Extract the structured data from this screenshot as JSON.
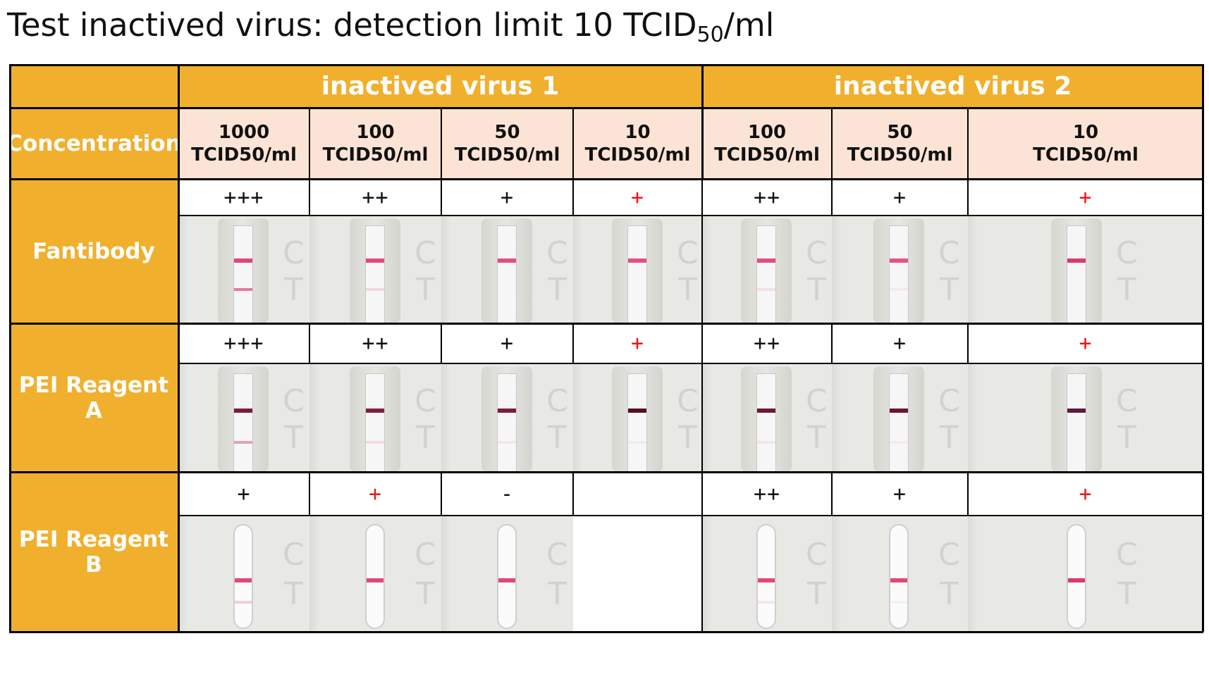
{
  "title": {
    "main": "Test inactived virus: detection limit 10 TCID",
    "subscript": "50",
    "suffix": "/ml"
  },
  "table": {
    "groups": [
      "inactived virus 1",
      "inactived virus 2"
    ],
    "concentration_label": "Concentration",
    "columns": [
      {
        "value": "1000",
        "unit": "TCID50/ml"
      },
      {
        "value": "100",
        "unit": "TCID50/ml"
      },
      {
        "value": "50",
        "unit": "TCID50/ml"
      },
      {
        "value": "10",
        "unit": "TCID50/ml"
      },
      {
        "value": "100",
        "unit": "TCID50/ml"
      },
      {
        "value": "50",
        "unit": "TCID50/ml"
      },
      {
        "value": "10",
        "unit": "TCID50/ml"
      }
    ],
    "rows": [
      {
        "label": "Fantibody",
        "results": [
          "+++",
          "++",
          "+",
          "+",
          "++",
          "+",
          "+"
        ],
        "result_colors": [
          "black",
          "black",
          "black",
          "red",
          "black",
          "black",
          "red"
        ]
      },
      {
        "label": "PEI Reagent A",
        "results": [
          "+++",
          "++",
          "+",
          "+",
          "++",
          "+",
          "+"
        ],
        "result_colors": [
          "black",
          "black",
          "black",
          "red",
          "black",
          "black",
          "red"
        ]
      },
      {
        "label": "PEI Reagent B",
        "results": [
          "+",
          "+",
          "-",
          "",
          "++",
          "+",
          "+"
        ],
        "result_colors": [
          "black",
          "red",
          "black",
          "black",
          "black",
          "black",
          "red"
        ]
      }
    ],
    "strip_letters": [
      "C",
      "T"
    ]
  },
  "strips": [
    [
      {
        "c_color": "#e0467a",
        "t_color": "#e37aa0",
        "t": 0.8
      },
      {
        "c_color": "#e04a7e",
        "t_color": "#eec3d3",
        "t": 0.25
      },
      {
        "c_color": "#e44d80",
        "t_color": null,
        "t": 0
      },
      {
        "c_color": "#e2508a",
        "t_color": null,
        "t": 0
      },
      {
        "c_color": "#e24d80",
        "t_color": "#f0cdd8",
        "t": 0.2
      },
      {
        "c_color": "#e25585",
        "t_color": "#f3d9e2",
        "t": 0.1
      },
      {
        "c_color": "#dc3a6e",
        "t_color": null,
        "t": 0
      }
    ],
    [
      {
        "c_color": "#7a1d3c",
        "t_color": "#de9ab0",
        "t": 0.55
      },
      {
        "c_color": "#7d1f3f",
        "t_color": "#ecc9d3",
        "t": 0.25
      },
      {
        "c_color": "#7b1f3c",
        "t_color": "#f0d4dc",
        "t": 0.12
      },
      {
        "c_color": "#52101f",
        "t_color": "#f1dbe1",
        "t": 0.08
      },
      {
        "c_color": "#6e1834",
        "t_color": "#f1d4dd",
        "t": 0.18
      },
      {
        "c_color": "#6a1632",
        "t_color": "#f3dbe2",
        "t": 0.1
      },
      {
        "c_color": "#5b1b40",
        "t_color": null,
        "t": 0
      }
    ],
    [
      {
        "c_color": "#e04878",
        "t_color": "#eeb9cc",
        "t": 0.35
      },
      {
        "c_color": "#e04878",
        "t_color": null,
        "t": 0
      },
      {
        "c_color": "#e04878",
        "t_color": null,
        "t": 0
      },
      null,
      {
        "c_color": "#e04878",
        "t_color": "#f0d0dc",
        "t": 0.15
      },
      {
        "c_color": "#e04878",
        "t_color": "#f5e0e8",
        "t": 0.08
      },
      {
        "c_color": "#dc3a6e",
        "t_color": null,
        "t": 0
      }
    ]
  ]
}
